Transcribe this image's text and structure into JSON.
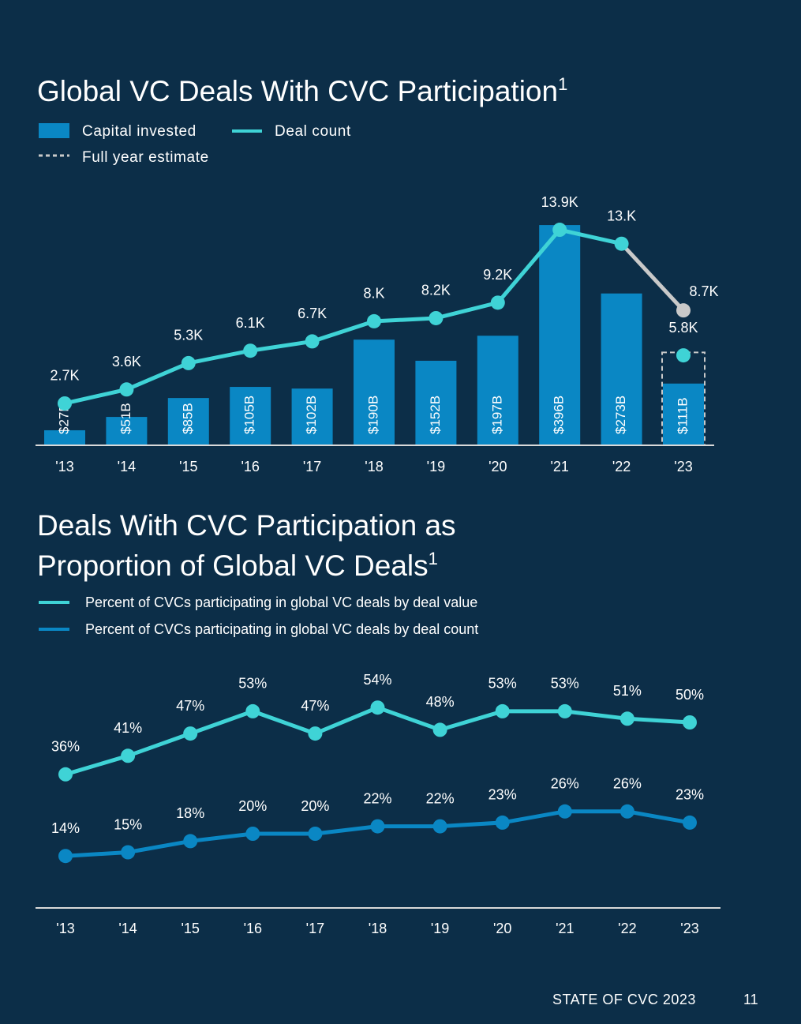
{
  "chart_data": [
    {
      "type": "bar",
      "title": "Global VC Deals With CVC Participation",
      "title_note": "1",
      "categories": [
        "'13",
        "'14",
        "'15",
        "'16",
        "'17",
        "'18",
        "'19",
        "'20",
        "'21",
        "'22",
        "'23"
      ],
      "series": [
        {
          "name": "Capital invested",
          "color": "#0a87c4",
          "values": [
            27,
            51,
            85,
            105,
            102,
            190,
            152,
            197,
            396,
            273,
            111
          ],
          "value_labels": [
            "$27B",
            "$51B",
            "$85B",
            "$105B",
            "$102B",
            "$190B",
            "$152B",
            "$197B",
            "$396B",
            "$273B",
            "$111B"
          ]
        },
        {
          "name": "Deal count",
          "type": "line",
          "axis": "y2",
          "color": "#3fd3d6",
          "values": [
            2.7,
            3.6,
            5.3,
            6.1,
            6.7,
            8,
            8.2,
            9.2,
            13.9,
            13,
            5.8
          ],
          "value_labels": [
            "2.7K",
            "3.6K",
            "5.3K",
            "6.1K",
            "6.7K",
            "8.K",
            "8.2K",
            "9.2K",
            "13.9K",
            "13.K",
            "5.8K"
          ]
        },
        {
          "name": "Full year estimate",
          "color": "#c9c9c9",
          "values": [
            null,
            null,
            null,
            null,
            null,
            null,
            null,
            null,
            null,
            null,
            167
          ],
          "y2_values": [
            null,
            null,
            null,
            null,
            null,
            null,
            null,
            null,
            null,
            null,
            8.7
          ],
          "y2_value_labels": [
            null,
            null,
            null,
            null,
            null,
            null,
            null,
            null,
            null,
            null,
            "8.7K"
          ]
        }
      ],
      "ylim": [
        0,
        460
      ],
      "y2lim": [
        0,
        16.5
      ]
    },
    {
      "type": "line",
      "title": "Deals With CVC Participation as Proportion of Global VC Deals",
      "title_note": "1",
      "categories": [
        "'13",
        "'14",
        "'15",
        "'16",
        "'17",
        "'18",
        "'19",
        "'20",
        "'21",
        "'22",
        "'23"
      ],
      "series": [
        {
          "name": "Percent of CVCs participating in global VC deals by deal value",
          "color": "#3fd3d6",
          "values": [
            36,
            41,
            47,
            53,
            47,
            54,
            48,
            53,
            53,
            51,
            50
          ],
          "value_labels": [
            "36%",
            "41%",
            "47%",
            "53%",
            "47%",
            "54%",
            "48%",
            "53%",
            "53%",
            "51%",
            "50%"
          ]
        },
        {
          "name": "Percent of CVCs participating in global VC deals by deal count",
          "color": "#0a87c4",
          "values": [
            14,
            15,
            18,
            20,
            20,
            22,
            22,
            23,
            26,
            26,
            23
          ],
          "value_labels": [
            "14%",
            "15%",
            "18%",
            "20%",
            "20%",
            "22%",
            "22%",
            "23%",
            "26%",
            "26%",
            "23%"
          ]
        }
      ],
      "ylim": [
        0,
        60
      ]
    }
  ],
  "footer": {
    "text": "STATE OF CVC 2023",
    "page": "11"
  }
}
